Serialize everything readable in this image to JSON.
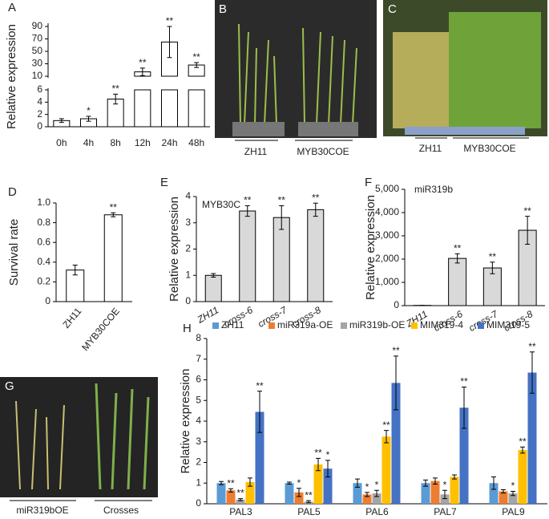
{
  "chart_data": [
    {
      "type": "bar",
      "panel_label": "A",
      "y_label": "Relative expression",
      "color": "#ffffff",
      "categories": [
        "0h",
        "4h",
        "8h",
        "12h",
        "24h",
        "48h"
      ],
      "values": [
        1,
        1.3,
        4.5,
        17,
        65,
        28
      ],
      "errors": [
        0.3,
        0.4,
        0.8,
        6,
        25,
        4
      ],
      "significance": [
        null,
        "*",
        "**",
        "**",
        "**",
        "**"
      ],
      "ylim": [
        0,
        90
      ],
      "axis_break": [
        6,
        10
      ],
      "yticks": [
        0,
        2,
        4,
        6,
        10,
        30,
        50,
        70,
        90
      ]
    },
    {
      "type": "bar",
      "panel_label": "D",
      "y_label": "Survival rate",
      "color": "#ffffff",
      "categories": [
        "ZH11",
        "MYB30COE"
      ],
      "values": [
        0.32,
        0.88
      ],
      "errors": [
        0.05,
        0.02
      ],
      "significance": [
        null,
        "**"
      ],
      "ylim": [
        0,
        1
      ],
      "yticks": [
        0,
        0.2,
        0.4,
        0.6,
        0.8,
        {
          "value": 1,
          "label": "1.0"
        }
      ]
    },
    {
      "type": "bar",
      "panel_label": "E",
      "title": "MYB30C",
      "y_label": "Relative expression",
      "color": "#d9d9d9",
      "categories": [
        "ZH11",
        "cross-6",
        "cross-7",
        "cross-8"
      ],
      "values": [
        1,
        3.45,
        3.2,
        3.5
      ],
      "errors": [
        0.07,
        0.2,
        0.45,
        0.25
      ],
      "significance": [
        null,
        "**",
        "**",
        "**"
      ],
      "ylim": [
        0,
        4
      ],
      "yticks": [
        0,
        1,
        2,
        3,
        4
      ]
    },
    {
      "type": "bar",
      "panel_label": "F",
      "title": "miR319b",
      "y_label": "Relative expression",
      "color": "#d9d9d9",
      "categories": [
        "ZH11",
        "cross-6",
        "cross-7",
        "cross-8"
      ],
      "values": [
        10,
        2030,
        1620,
        3240
      ],
      "errors": [
        5,
        200,
        250,
        600
      ],
      "significance": [
        null,
        "**",
        "**",
        "**"
      ],
      "ylim": [
        0,
        5000
      ],
      "yticks": [
        0,
        {
          "value": 1000,
          "label": "1,000"
        },
        {
          "value": 2000,
          "label": "2,000"
        },
        {
          "value": 3000,
          "label": "3,000"
        },
        {
          "value": 4000,
          "label": "4,000"
        },
        {
          "value": 5000,
          "label": "5,000"
        }
      ]
    },
    {
      "type": "grouped_bar",
      "panel_label": "H",
      "y_label": "Relative expression",
      "categories": [
        "PAL3",
        "PAL5",
        "PAL6",
        "PAL7",
        "PAL9"
      ],
      "series": [
        {
          "name": "ZH11",
          "color": "#5b9bd5",
          "values": [
            1.0,
            1.0,
            1.0,
            1.0,
            1.0
          ],
          "errors": [
            0.08,
            0.05,
            0.2,
            0.15,
            0.3
          ],
          "significance": [
            null,
            null,
            null,
            null,
            null
          ]
        },
        {
          "name": "miR319a-OE",
          "color": "#ed7d31",
          "values": [
            0.65,
            0.55,
            0.45,
            1.1,
            0.6
          ],
          "errors": [
            0.08,
            0.2,
            0.1,
            0.15,
            0.08
          ],
          "significance": [
            "**",
            "*",
            "*",
            null,
            null
          ]
        },
        {
          "name": "miR319b-OE",
          "color": "#a5a5a5",
          "values": [
            0.2,
            0.1,
            0.5,
            0.45,
            0.5
          ],
          "errors": [
            0.05,
            0.05,
            0.15,
            0.2,
            0.1
          ],
          "significance": [
            "**",
            "**",
            "*",
            "*",
            "*"
          ]
        },
        {
          "name": "MIM319-4",
          "color": "#ffc000",
          "values": [
            1.05,
            1.9,
            3.25,
            1.3,
            2.6
          ],
          "errors": [
            0.2,
            0.3,
            0.3,
            0.1,
            0.15
          ],
          "significance": [
            null,
            "**",
            "**",
            null,
            "**"
          ]
        },
        {
          "name": "MIM319-5",
          "color": "#4472c4",
          "values": [
            4.45,
            1.7,
            5.85,
            4.65,
            6.35
          ],
          "errors": [
            1.0,
            0.4,
            1.3,
            1.0,
            1.0
          ],
          "significance": [
            "**",
            "*",
            "**",
            "**",
            "**"
          ]
        }
      ],
      "ylim": [
        0,
        8
      ],
      "yticks": [
        0,
        1,
        2,
        3,
        4,
        5,
        6,
        7,
        8
      ]
    }
  ],
  "photo_panels": [
    {
      "panel_label": "B",
      "labels": [
        "ZH11",
        "MYB30COE"
      ]
    },
    {
      "panel_label": "C",
      "labels": [
        "ZH11",
        "MYB30COE"
      ]
    },
    {
      "panel_label": "G",
      "labels": [
        "miR319bOE",
        "Crosses"
      ]
    }
  ]
}
